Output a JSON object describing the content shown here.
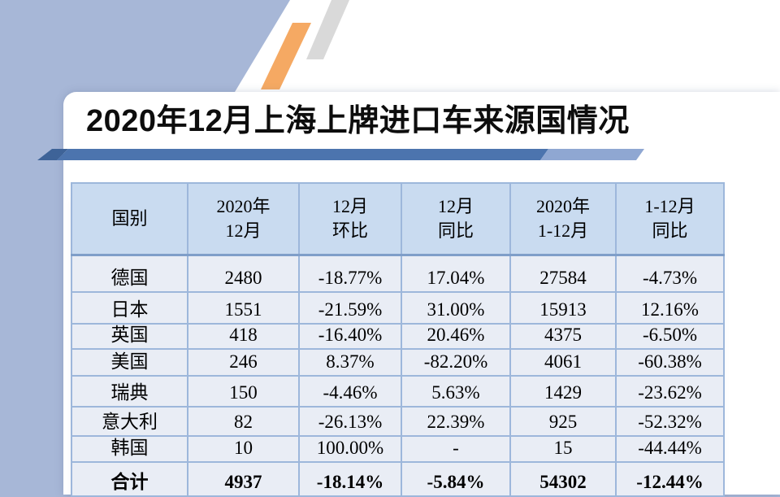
{
  "slide": {
    "title": "2020年12月上海上牌进口车来源国情况",
    "colors": {
      "background": "#A7B7D7",
      "panel": "#FFFFFF",
      "divider_bar_dark": "#4C74AE",
      "divider_bar_light": "#8FA7D2",
      "stripe_orange": "#F5A963",
      "stripe_gray": "#D9D9D9",
      "table_header_bg": "#C9DBF0",
      "table_row_bg": "#E9EDF5",
      "table_border": "#9DB7DB",
      "text": "#000000"
    }
  },
  "table": {
    "headers": [
      {
        "l1": "国别",
        "l2": ""
      },
      {
        "l1": "2020年",
        "l2": "12月"
      },
      {
        "l1": "12月",
        "l2": "环比"
      },
      {
        "l1": "12月",
        "l2": "同比"
      },
      {
        "l1": "2020年",
        "l2": "1-12月"
      },
      {
        "l1": "1-12月",
        "l2": "同比"
      }
    ],
    "column_keys": [
      "country",
      "dec-2020",
      "dec-mom",
      "dec-yoy",
      "jan-dec-2020",
      "jan-dec-yoy"
    ],
    "rows": [
      {
        "total": false,
        "values": [
          "德国",
          "2480",
          "-18.77%",
          "17.04%",
          "27584",
          "-4.73%"
        ]
      },
      {
        "total": false,
        "values": [
          "日本",
          "1551",
          "-21.59%",
          "31.00%",
          "15913",
          "12.16%"
        ]
      },
      {
        "total": false,
        "values": [
          "英国",
          "418",
          "-16.40%",
          "20.46%",
          "4375",
          "-6.50%"
        ]
      },
      {
        "total": false,
        "values": [
          "美国",
          "246",
          "8.37%",
          "-82.20%",
          "4061",
          "-60.38%"
        ]
      },
      {
        "total": false,
        "values": [
          "瑞典",
          "150",
          "-4.46%",
          "5.63%",
          "1429",
          "-23.62%"
        ]
      },
      {
        "total": false,
        "values": [
          "意大利",
          "82",
          "-26.13%",
          "22.39%",
          "925",
          "-52.32%"
        ]
      },
      {
        "total": false,
        "values": [
          "韩国",
          "10",
          "100.00%",
          "-",
          "15",
          "-44.44%"
        ]
      },
      {
        "total": true,
        "values": [
          "合计",
          "4937",
          "-18.14%",
          "-5.84%",
          "54302",
          "-12.44%"
        ]
      }
    ]
  }
}
